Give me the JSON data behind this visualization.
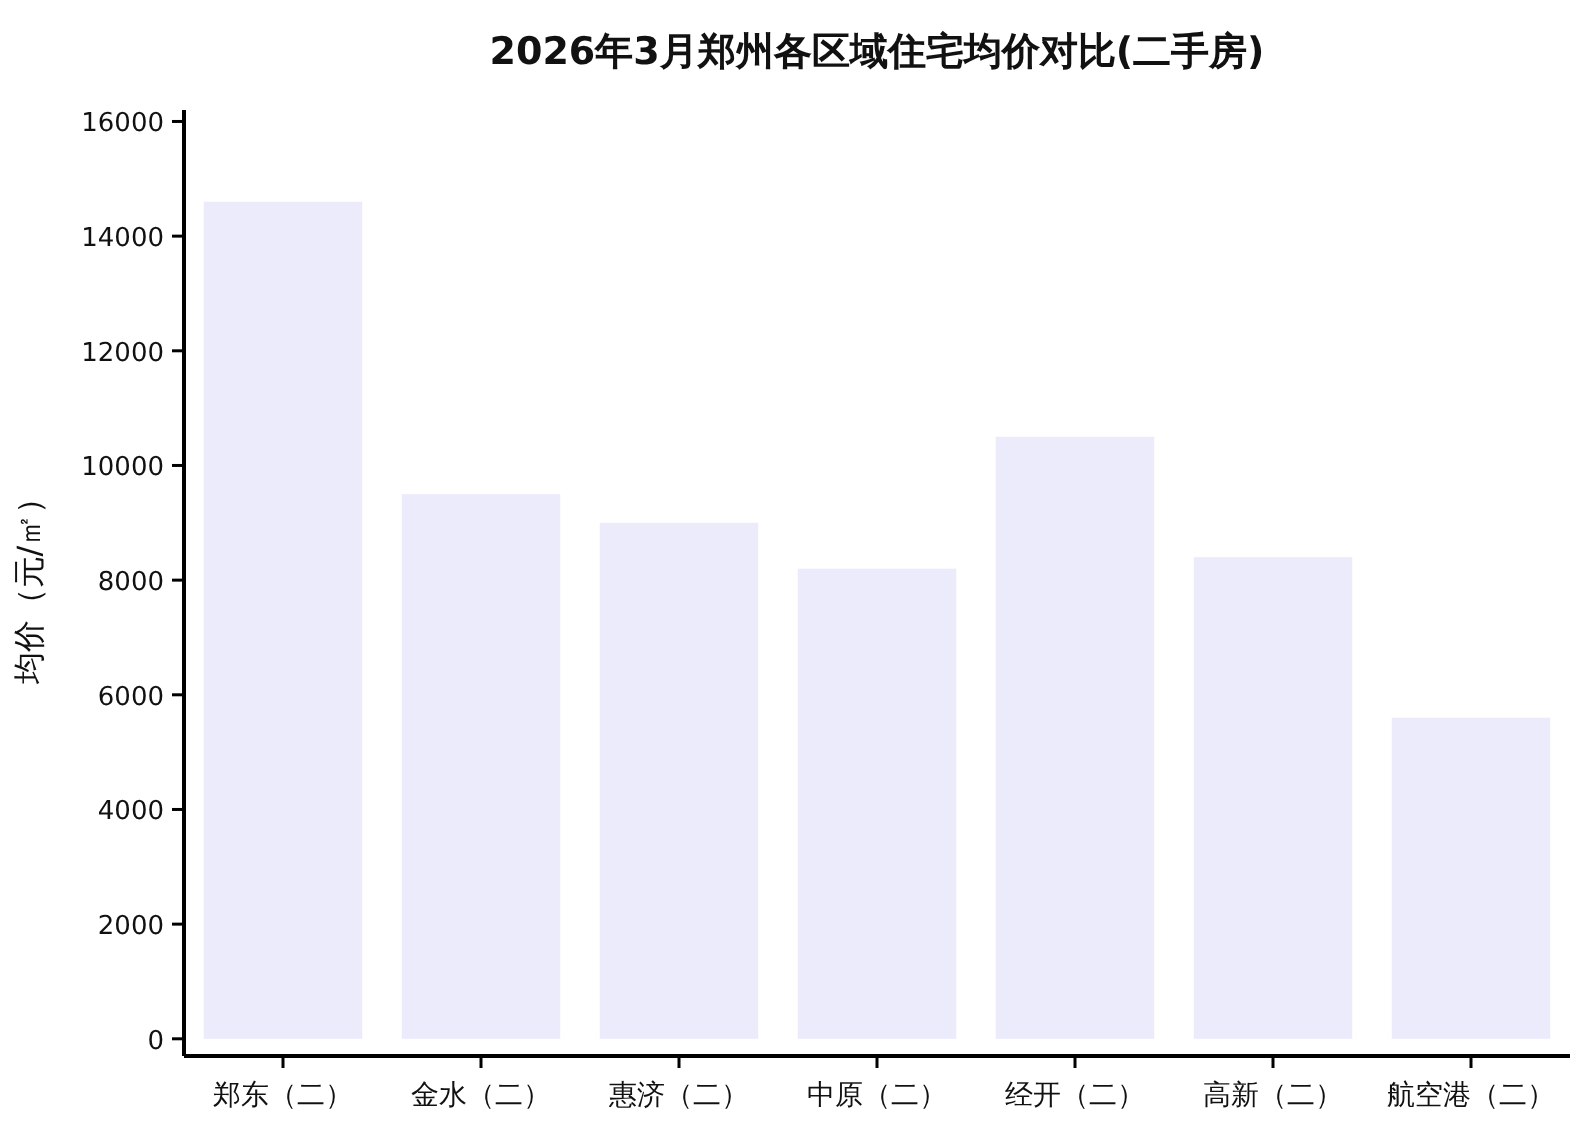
{
  "chart_data": {
    "type": "bar",
    "title": "2026年3月郑州各区域住宅均价对比(二手房)",
    "ylabel": "均价（元/㎡）",
    "categories": [
      "郑东（二）",
      "金水（二）",
      "惠济（二）",
      "中原（二）",
      "经开（二）",
      "高新（二）",
      "航空港（二）"
    ],
    "values": [
      14600,
      9500,
      9000,
      8200,
      10500,
      8400,
      5600
    ],
    "color": "#ebebfb",
    "ylim": [
      -300,
      16200
    ],
    "yticks": [
      0,
      2000,
      4000,
      6000,
      8000,
      10000,
      12000,
      14000,
      16000
    ],
    "grid": false
  }
}
